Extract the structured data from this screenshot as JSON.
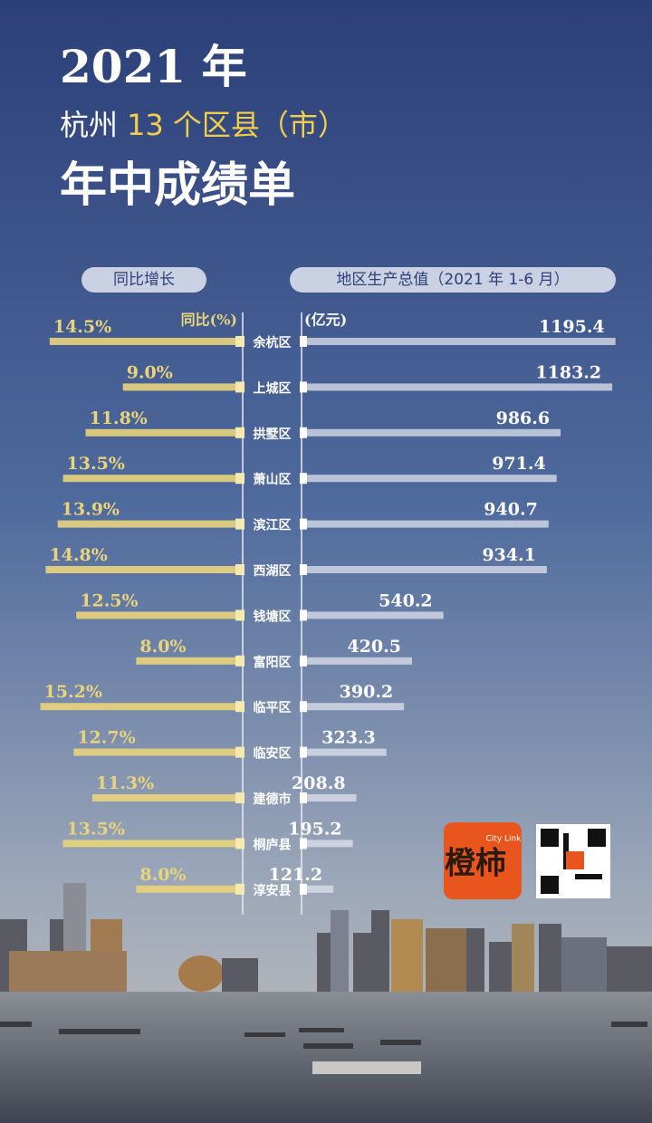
{
  "title": [
    "2021 年",
    "杭州",
    "13 个区县（市）",
    "年中成绩单"
  ],
  "chart_data": {
    "type": "butterfly",
    "categories": [
      "余杭区",
      "上城区",
      "拱墅区",
      "萧山区",
      "滨江区",
      "西湖区",
      "钱塘区",
      "富阳区",
      "临平区",
      "临安区",
      "建德市",
      "桐庐县",
      "淳安县"
    ],
    "left_axis_label": "同比(%)",
    "right_axis_label": "(亿元)",
    "series": [
      {
        "name": "同比增长",
        "color": "#e9d47c",
        "values": [
          14.5,
          9.0,
          11.8,
          13.5,
          13.9,
          14.8,
          12.5,
          8.0,
          15.2,
          12.7,
          11.3,
          13.5,
          8.0
        ],
        "value_labels": [
          "14.5%",
          "9.0%",
          "11.8%",
          "13.5%",
          "13.9%",
          "14.8%",
          "12.5%",
          "8.0%",
          "15.2%",
          "12.7%",
          "11.3%",
          "13.5%",
          "8.0%"
        ]
      },
      {
        "name": "地区生产总值（2021 年 1-6 月）",
        "color": "#dfe3ec",
        "values": [
          1195.4,
          1183.2,
          986.6,
          971.4,
          940.7,
          934.1,
          540.2,
          420.5,
          390.2,
          323.3,
          208.8,
          195.2,
          121.2
        ]
      }
    ]
  },
  "logo": {
    "main": "橙柿",
    "sub": "City Link"
  }
}
